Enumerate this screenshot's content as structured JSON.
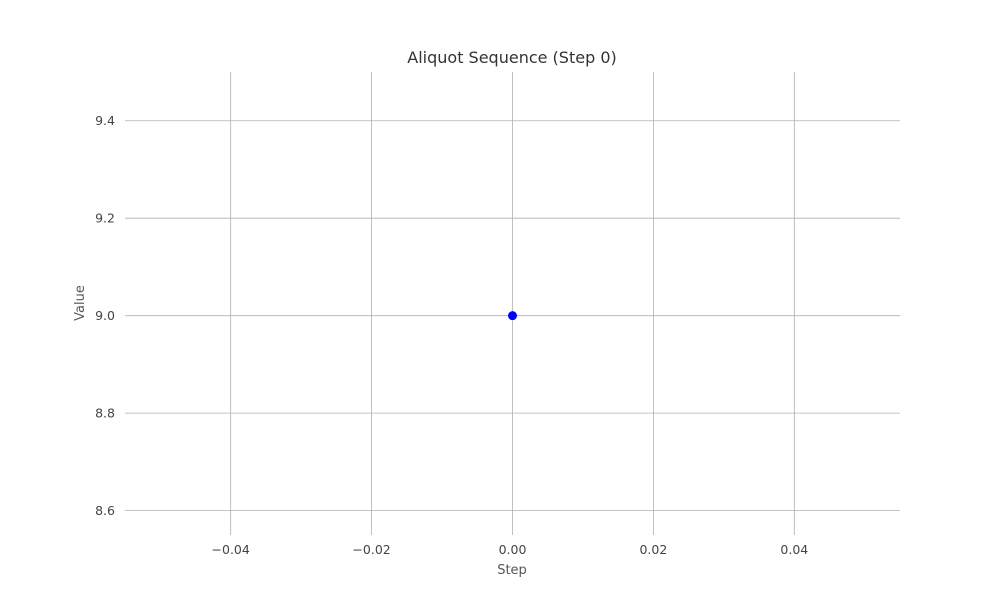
{
  "chart_data": {
    "type": "scatter",
    "title": "Aliquot Sequence (Step 0)",
    "xlabel": "Step",
    "ylabel": "Value",
    "xlim": [
      -0.055,
      0.055
    ],
    "ylim": [
      8.55,
      9.5
    ],
    "xticks": [
      -0.04,
      -0.02,
      0.0,
      0.02,
      0.04
    ],
    "xtick_labels": [
      "−0.04",
      "−0.02",
      "0.00",
      "0.02",
      "0.04"
    ],
    "yticks": [
      8.6,
      8.8,
      9.0,
      9.2,
      9.4
    ],
    "ytick_labels": [
      "8.6",
      "8.8",
      "9.0",
      "9.2",
      "9.4"
    ],
    "grid": true,
    "series": [
      {
        "color": "#0000ff",
        "points": [
          {
            "x": 0,
            "y": 9
          }
        ]
      }
    ]
  }
}
